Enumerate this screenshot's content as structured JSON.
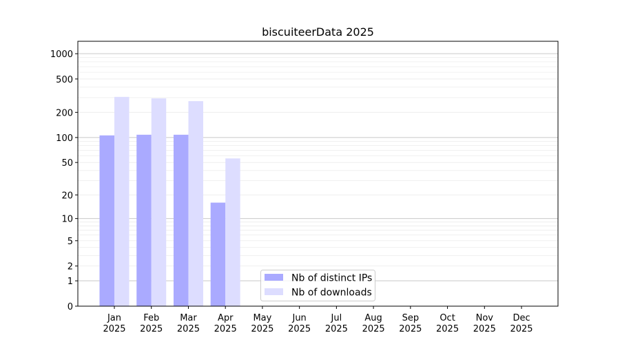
{
  "chart_data": {
    "type": "bar",
    "title": "biscuiteerData 2025",
    "xlabel": "",
    "ylabel": "",
    "yscale": "log(1+y)",
    "ylim": [
      0,
      1300
    ],
    "yticks": [
      0,
      1,
      2,
      5,
      10,
      20,
      50,
      100,
      200,
      500,
      1000
    ],
    "grid": true,
    "legend_position": "bottom-center",
    "categories": [
      "Jan\n2025",
      "Feb\n2025",
      "Mar\n2025",
      "Apr\n2025",
      "May\n2025",
      "Jun\n2025",
      "Jul\n2025",
      "Aug\n2025",
      "Sep\n2025",
      "Oct\n2025",
      "Nov\n2025",
      "Dec\n2025"
    ],
    "series": [
      {
        "name": "Nb of distinct IPs",
        "color": "#aaaaff",
        "values": [
          106,
          108,
          108,
          16,
          null,
          null,
          null,
          null,
          null,
          null,
          null,
          null
        ]
      },
      {
        "name": "Nb of downloads",
        "color": "#ddddff",
        "values": [
          306,
          294,
          272,
          56,
          null,
          null,
          null,
          null,
          null,
          null,
          null,
          null
        ]
      }
    ]
  }
}
